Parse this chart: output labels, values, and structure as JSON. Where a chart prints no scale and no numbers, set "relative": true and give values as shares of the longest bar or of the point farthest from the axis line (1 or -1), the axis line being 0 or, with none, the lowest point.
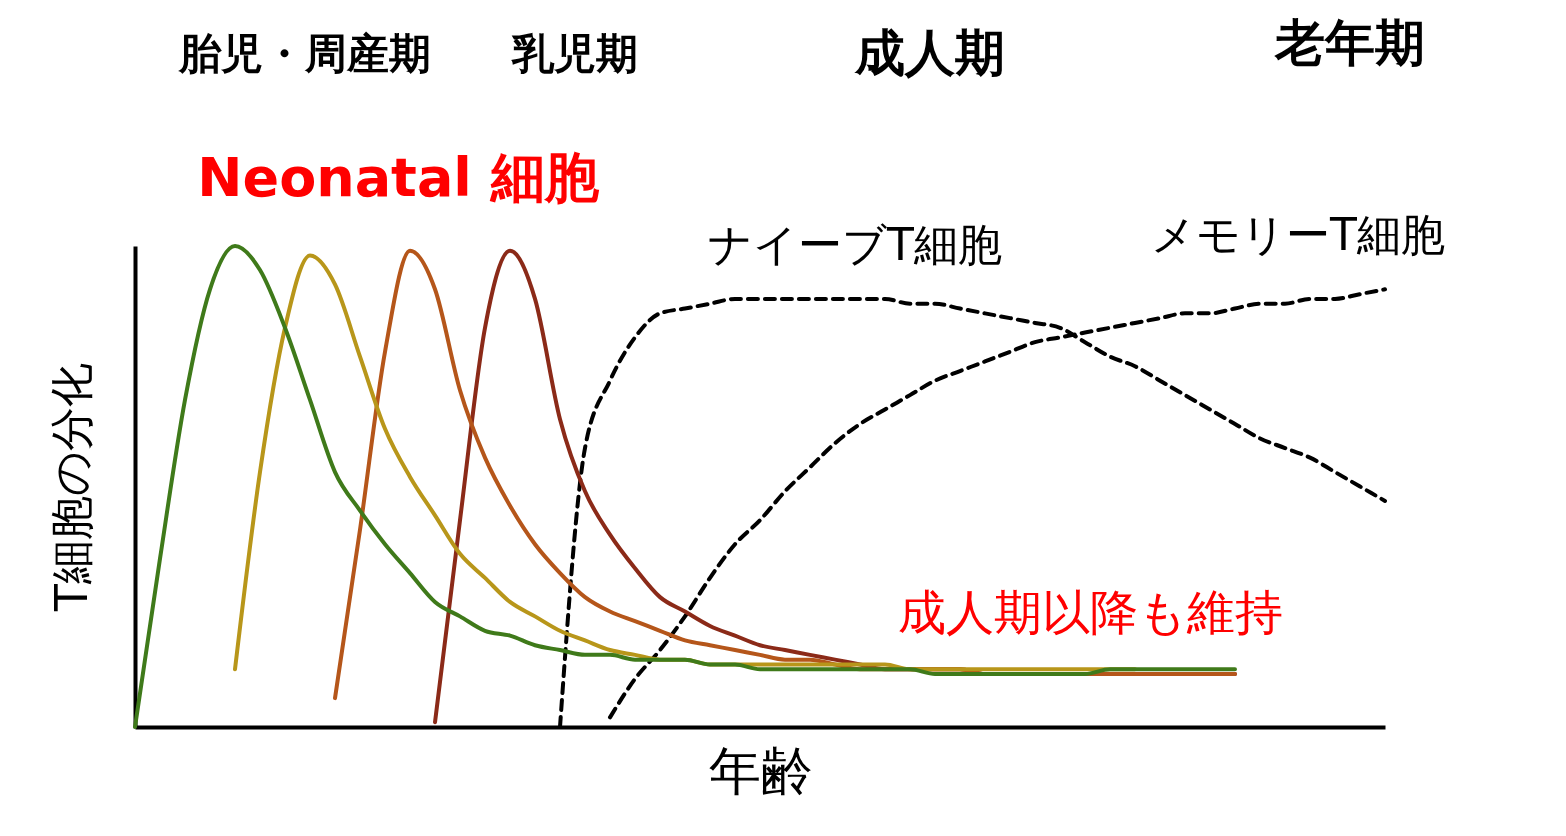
{
  "chart_data": {
    "type": "line",
    "relative": true,
    "xlabel": "年齢",
    "ylabel": "T細胞の分化",
    "annotations": [
      "胎児・周産期",
      "乳児期",
      "成人期",
      "老年期",
      "Neonatal 細胞",
      "成人期以降も維持"
    ],
    "categories": [
      null,
      null,
      null,
      null,
      null,
      null,
      null,
      null,
      null,
      null,
      null,
      null,
      null,
      null,
      null,
      null,
      null,
      null,
      null,
      null,
      null,
      null,
      null,
      null,
      null,
      null,
      null,
      null,
      null,
      null,
      null,
      null,
      null,
      null,
      null,
      null,
      null,
      null,
      null,
      null,
      null,
      null,
      null,
      null,
      null,
      null,
      null,
      null,
      null,
      null,
      null
    ],
    "series": [
      {
        "color": "#3f7a1a",
        "line_style": "solid",
        "values": [
          0,
          0.35,
          0.68,
          0.91,
          1,
          0.95,
          0.83,
          0.68,
          0.53,
          0.45,
          0.38,
          0.32,
          0.26,
          0.23,
          0.2,
          0.19,
          0.17,
          0.16,
          0.15,
          0.15,
          0.14,
          0.14,
          0.14,
          0.13,
          0.13,
          0.12,
          0.12,
          0.12,
          0.12,
          0.12,
          0.12,
          0.12,
          0.11,
          0.11,
          0.11,
          0.11,
          0.11,
          0.11,
          0.11,
          0.12,
          0.12,
          0.12,
          0.12,
          0.12,
          0.12,
          null,
          null,
          null,
          null,
          null,
          null
        ]
      },
      {
        "color": "#b8961a",
        "line_style": "solid",
        "values": [
          null,
          null,
          null,
          null,
          0.12,
          0.53,
          0.83,
          0.98,
          0.92,
          0.77,
          0.62,
          0.52,
          0.44,
          0.36,
          0.31,
          0.26,
          0.23,
          0.2,
          0.18,
          0.16,
          0.15,
          0.14,
          0.14,
          0.13,
          0.13,
          0.13,
          0.13,
          0.13,
          0.13,
          0.13,
          0.13,
          0.12,
          0.12,
          0.12,
          0.12,
          0.12,
          0.12,
          0.12,
          0.12,
          0.12,
          0.12,
          null,
          null,
          null,
          null,
          null,
          null,
          null,
          null,
          null,
          null
        ]
      },
      {
        "color": "#b5561a",
        "line_style": "solid",
        "values": [
          null,
          null,
          null,
          null,
          null,
          null,
          null,
          null,
          0.06,
          0.41,
          0.78,
          0.99,
          0.91,
          0.7,
          0.56,
          0.46,
          0.38,
          0.32,
          0.27,
          0.24,
          0.22,
          0.2,
          0.18,
          0.17,
          0.16,
          0.15,
          0.14,
          0.14,
          0.13,
          0.12,
          0.12,
          0.12,
          0.12,
          0.12,
          0.11,
          0.11,
          0.11,
          0.11,
          0.11,
          0.11,
          0.11,
          0.11,
          0.11,
          0.11,
          0.11,
          null,
          null,
          null,
          null,
          null,
          null
        ]
      },
      {
        "color": "#8b2a18",
        "line_style": "solid",
        "values": [
          null,
          null,
          null,
          null,
          null,
          null,
          null,
          null,
          null,
          null,
          null,
          null,
          0.01,
          0.43,
          0.83,
          0.99,
          0.89,
          0.64,
          0.49,
          0.4,
          0.33,
          0.27,
          0.24,
          0.21,
          0.19,
          0.17,
          0.16,
          0.15,
          0.14,
          0.13,
          0.12,
          0.12,
          0.12,
          0.12,
          0.11,
          0.11,
          0.11,
          0.11,
          0.11,
          0.11,
          0.11,
          0.11,
          0.11,
          0.11,
          0.11,
          null,
          null,
          null,
          null,
          null,
          null
        ]
      },
      {
        "name": "ナイーブT細胞",
        "color": "#000000",
        "line_style": "dashed",
        "values": [
          null,
          null,
          null,
          null,
          null,
          null,
          null,
          null,
          null,
          null,
          null,
          null,
          null,
          null,
          null,
          null,
          null,
          0,
          0.58,
          0.72,
          0.81,
          0.86,
          0.87,
          0.88,
          0.89,
          0.89,
          0.89,
          0.89,
          0.89,
          0.89,
          0.89,
          0.88,
          0.88,
          0.87,
          0.86,
          0.85,
          0.84,
          0.83,
          0.8,
          0.77,
          0.75,
          0.72,
          0.69,
          0.66,
          0.63,
          0.6,
          0.58,
          0.56,
          0.53,
          0.5,
          0.47
        ]
      },
      {
        "name": "メモリーT細胞",
        "color": "#000000",
        "line_style": "dashed",
        "values": [
          null,
          null,
          null,
          null,
          null,
          null,
          null,
          null,
          null,
          null,
          null,
          null,
          null,
          null,
          null,
          null,
          null,
          null,
          null,
          0.02,
          0.1,
          0.16,
          0.23,
          0.31,
          0.38,
          0.43,
          0.49,
          0.54,
          0.59,
          0.63,
          0.66,
          0.69,
          0.72,
          0.74,
          0.76,
          0.78,
          0.8,
          0.81,
          0.82,
          0.83,
          0.84,
          0.85,
          0.86,
          0.86,
          0.87,
          0.88,
          0.88,
          0.89,
          0.89,
          0.9,
          0.91
        ]
      }
    ]
  }
}
